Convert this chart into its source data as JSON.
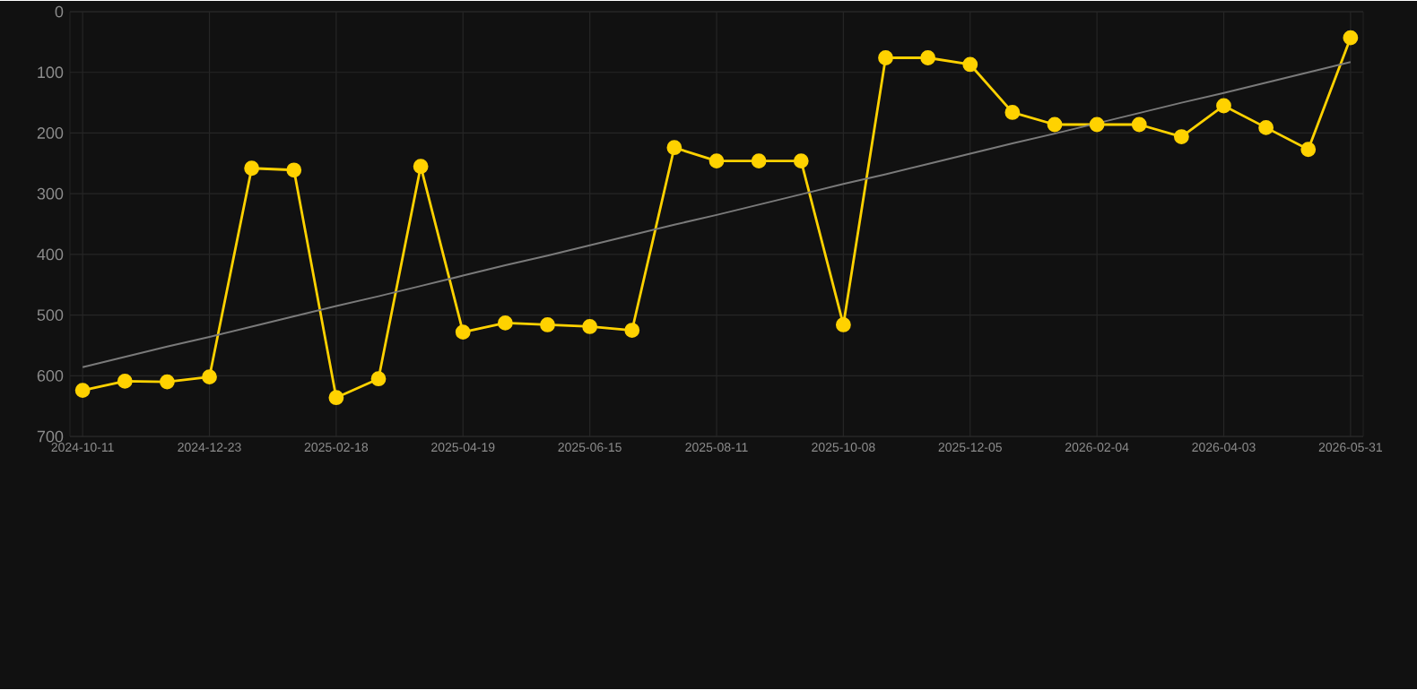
{
  "chart_data": {
    "type": "line",
    "categories": [
      "2024-10-11",
      null,
      null,
      "2024-12-23",
      null,
      null,
      "2025-02-18",
      null,
      null,
      "2025-04-19",
      null,
      null,
      "2025-06-15",
      null,
      null,
      "2025-08-11",
      null,
      null,
      "2025-10-08",
      null,
      null,
      "2025-12-05",
      null,
      null,
      "2026-02-04",
      null,
      null,
      "2026-04-03",
      null,
      null,
      "2026-05-31"
    ],
    "series": [
      {
        "color": "#ffd200",
        "marker": "circle",
        "values": [
          624,
          609,
          610,
          602,
          258,
          261,
          636,
          605,
          255,
          528,
          513,
          516,
          519,
          525,
          224,
          246,
          246,
          246,
          516,
          76,
          76,
          87,
          166,
          186,
          186,
          186,
          206,
          155,
          191,
          227,
          43
        ]
      },
      {
        "color": "#7a7a7a",
        "marker": "none",
        "values": [
          586,
          569,
          552,
          536,
          519,
          502,
          485,
          469,
          452,
          435,
          418,
          402,
          385,
          368,
          351,
          335,
          318,
          301,
          284,
          268,
          251,
          234,
          217,
          201,
          184,
          167,
          150,
          134,
          117,
          100,
          83
        ]
      }
    ],
    "ylim": [
      700,
      0
    ],
    "yticks": [
      0,
      100,
      200,
      300,
      400,
      500,
      600,
      700
    ],
    "grid": true
  }
}
